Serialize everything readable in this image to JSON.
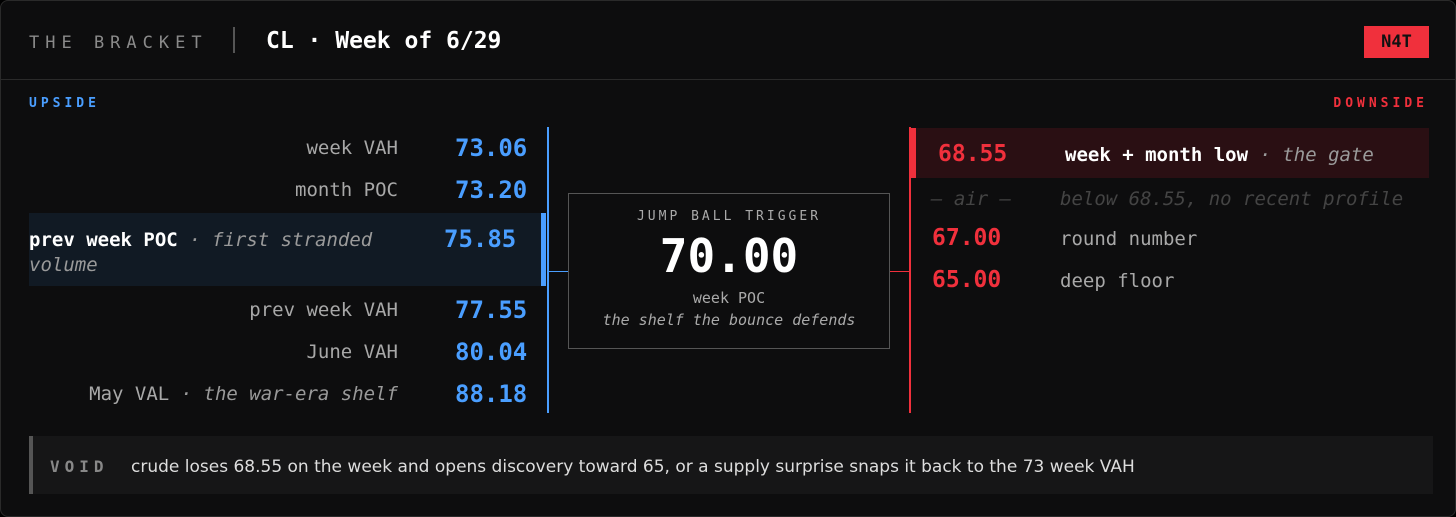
{
  "header": {
    "brand": "THE BRACKET",
    "title": "CL · Week of 6/29",
    "badge": "N4T"
  },
  "upside": {
    "heading": "UPSIDE",
    "levels": [
      {
        "label": "week VAH",
        "price": "73.06"
      },
      {
        "label": "month POC",
        "price": "73.20"
      },
      {
        "label": "prev week POC",
        "note": "· first stranded volume",
        "price": "75.85"
      },
      {
        "label": "prev week VAH",
        "price": "77.55"
      },
      {
        "label": "June VAH",
        "price": "80.04"
      },
      {
        "label": "May VAL",
        "note": "· the war-era shelf",
        "price": "88.18"
      }
    ]
  },
  "trigger": {
    "heading": "JUMP BALL TRIGGER",
    "price": "70.00",
    "label": "week POC",
    "note": "the shelf the bounce defends"
  },
  "downside": {
    "heading": "DOWNSIDE",
    "levels": [
      {
        "price": "68.55",
        "label": "week + month low",
        "note": "· the gate"
      },
      {
        "price": "— air —",
        "label": "below 68.55, no recent profile"
      },
      {
        "price": "67.00",
        "label": "round number"
      },
      {
        "price": "65.00",
        "label": "deep floor"
      }
    ]
  },
  "void": {
    "label": "VOID",
    "text": "crude loses 68.55 on the week and opens discovery toward 65, or a supply surprise snaps it back to the 73 week VAH"
  }
}
